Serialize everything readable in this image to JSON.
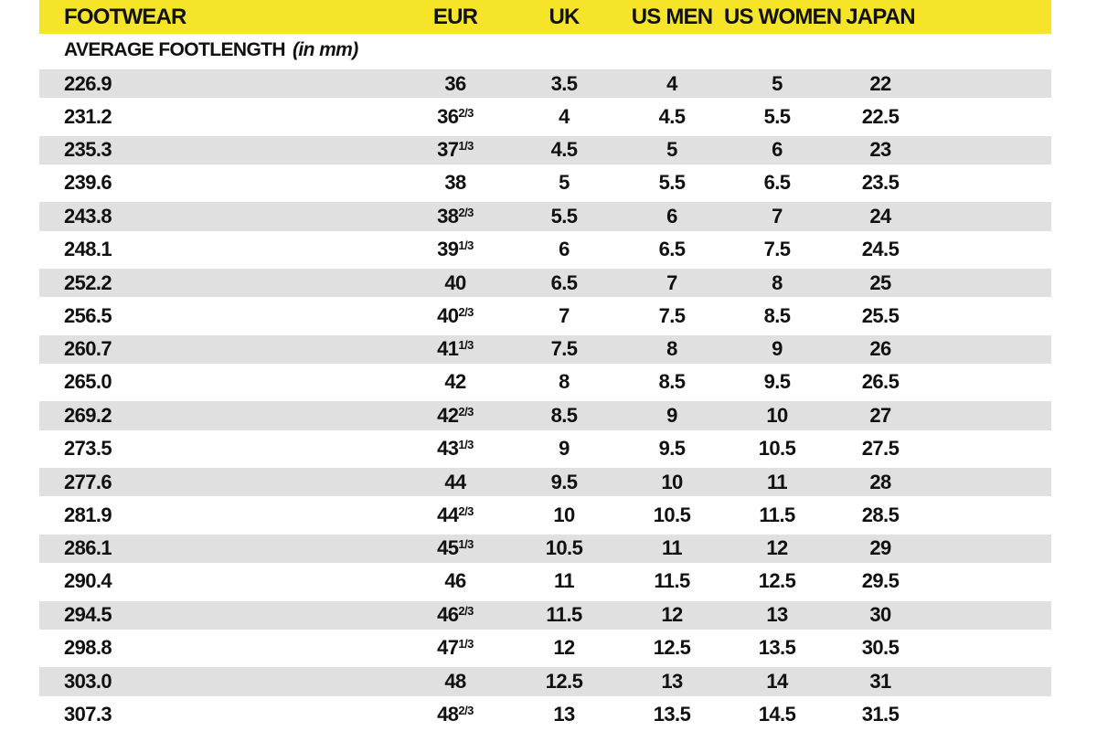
{
  "header": {
    "columns": [
      "FOOTWEAR",
      "EUR",
      "UK",
      "US MEN",
      "US WOMEN",
      "JAPAN"
    ]
  },
  "subheader": {
    "label": "AVERAGE FOOTLENGTH",
    "note": "(in mm)"
  },
  "colors": {
    "header_bg": "#F5E428",
    "row_alt_bg": "#E0E0E0",
    "text": "#111111"
  },
  "chart_data": {
    "type": "table",
    "title": "FOOTWEAR size conversion chart",
    "columns": [
      "FOOTWEAR (average footlength in mm)",
      "EUR",
      "UK",
      "US MEN",
      "US WOMEN",
      "JAPAN"
    ],
    "rows": [
      [
        "226.9",
        "36",
        "3.5",
        "4",
        "5",
        "22"
      ],
      [
        "231.2",
        "36^2/3",
        "4",
        "4.5",
        "5.5",
        "22.5"
      ],
      [
        "235.3",
        "37^1/3",
        "4.5",
        "5",
        "6",
        "23"
      ],
      [
        "239.6",
        "38",
        "5",
        "5.5",
        "6.5",
        "23.5"
      ],
      [
        "243.8",
        "38^2/3",
        "5.5",
        "6",
        "7",
        "24"
      ],
      [
        "248.1",
        "39^1/3",
        "6",
        "6.5",
        "7.5",
        "24.5"
      ],
      [
        "252.2",
        "40",
        "6.5",
        "7",
        "8",
        "25"
      ],
      [
        "256.5",
        "40^2/3",
        "7",
        "7.5",
        "8.5",
        "25.5"
      ],
      [
        "260.7",
        "41^1/3",
        "7.5",
        "8",
        "9",
        "26"
      ],
      [
        "265.0",
        "42",
        "8",
        "8.5",
        "9.5",
        "26.5"
      ],
      [
        "269.2",
        "42^2/3",
        "8.5",
        "9",
        "10",
        "27"
      ],
      [
        "273.5",
        "43^1/3",
        "9",
        "9.5",
        "10.5",
        "27.5"
      ],
      [
        "277.6",
        "44",
        "9.5",
        "10",
        "11",
        "28"
      ],
      [
        "281.9",
        "44^2/3",
        "10",
        "10.5",
        "11.5",
        "28.5"
      ],
      [
        "286.1",
        "45^1/3",
        "10.5",
        "11",
        "12",
        "29"
      ],
      [
        "290.4",
        "46",
        "11",
        "11.5",
        "12.5",
        "29.5"
      ],
      [
        "294.5",
        "46^2/3",
        "11.5",
        "12",
        "13",
        "30"
      ],
      [
        "298.8",
        "47^1/3",
        "12",
        "12.5",
        "13.5",
        "30.5"
      ],
      [
        "303.0",
        "48",
        "12.5",
        "13",
        "14",
        "31"
      ],
      [
        "307.3",
        "48^2/3",
        "13",
        "13.5",
        "14.5",
        "31.5"
      ]
    ]
  }
}
